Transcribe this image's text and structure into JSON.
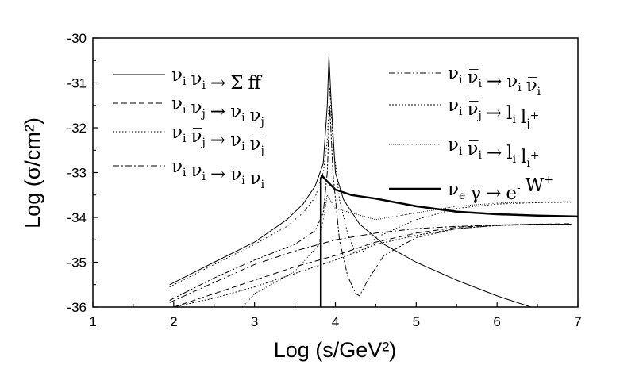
{
  "chart_data": {
    "type": "line",
    "title": "",
    "xlabel": "Log (s/GeV²)",
    "ylabel": "Log (σ/cm²)",
    "xlim": [
      1,
      7
    ],
    "ylim": [
      -36,
      -30
    ],
    "xticks": [
      "1",
      "2",
      "3",
      "4",
      "5",
      "6",
      "7"
    ],
    "yticks": [
      "-30",
      "-31",
      "-32",
      "-33",
      "-34",
      "-35",
      "-36"
    ],
    "grid": false,
    "legend": [
      {
        "id": "s1",
        "dash": "solid",
        "width": 1,
        "parts": [
          [
            "ν",
            "i"
          ],
          [
            "ν̅",
            "i"
          ],
          [
            "→",
            ""
          ],
          [
            "Σ",
            ""
          ],
          [
            "f",
            ""
          ],
          [
            "f̅",
            ""
          ]
        ]
      },
      {
        "id": "s2",
        "dash": "dash",
        "width": 1,
        "parts": [
          [
            "ν",
            "i"
          ],
          [
            "ν",
            "j"
          ],
          [
            "→",
            ""
          ],
          [
            "ν",
            "i"
          ],
          [
            "ν",
            "j"
          ]
        ]
      },
      {
        "id": "s3",
        "dash": "dot",
        "width": 1,
        "parts": [
          [
            "ν",
            "i"
          ],
          [
            "ν̅",
            "j"
          ],
          [
            "→",
            ""
          ],
          [
            "ν",
            "i"
          ],
          [
            "ν̅",
            "j"
          ]
        ]
      },
      {
        "id": "s4",
        "dash": "dashdot",
        "width": 1,
        "parts": [
          [
            "ν",
            "i"
          ],
          [
            "ν",
            "i"
          ],
          [
            "→",
            ""
          ],
          [
            "ν",
            "i"
          ],
          [
            "ν",
            "i"
          ]
        ]
      },
      {
        "id": "s5",
        "dash": "dashdotdot",
        "width": 1,
        "parts": [
          [
            "ν",
            "i"
          ],
          [
            "ν̅",
            "i"
          ],
          [
            "→",
            ""
          ],
          [
            "ν",
            "i"
          ],
          [
            "ν̅",
            "i"
          ]
        ]
      },
      {
        "id": "s6",
        "dash": "shortdot",
        "width": 1,
        "parts": [
          [
            "ν",
            "i"
          ],
          [
            "ν̅",
            "j"
          ],
          [
            "→",
            ""
          ],
          [
            "l",
            "i"
          ],
          [
            "l",
            "j+"
          ]
        ]
      },
      {
        "id": "s7",
        "dash": "finedot",
        "width": 1,
        "parts": [
          [
            "ν",
            "i"
          ],
          [
            "ν̅",
            "i"
          ],
          [
            "→",
            ""
          ],
          [
            "l",
            "i"
          ],
          [
            "l",
            "i+"
          ]
        ]
      },
      {
        "id": "s8",
        "dash": "solid",
        "width": 2.5,
        "parts": [
          [
            "ν",
            "e"
          ],
          [
            "γ",
            ""
          ],
          [
            "→",
            ""
          ],
          [
            "e",
            "-"
          ],
          [
            "W",
            "+"
          ]
        ]
      }
    ],
    "series": [
      {
        "id": "s1",
        "x": [
          1.95,
          2.5,
          3.0,
          3.4,
          3.6,
          3.75,
          3.85,
          3.9,
          3.92,
          3.95,
          4.0,
          4.1,
          4.3,
          4.6,
          5.0,
          5.5,
          6.0,
          6.42
        ],
        "y": [
          -35.5,
          -35.0,
          -34.55,
          -34.05,
          -33.7,
          -33.3,
          -32.8,
          -31.5,
          -30.4,
          -31.5,
          -33.0,
          -33.6,
          -34.15,
          -34.6,
          -35.0,
          -35.4,
          -35.75,
          -36.0
        ]
      },
      {
        "id": "s2",
        "x": [
          2.0,
          2.5,
          3.0,
          3.5,
          4.0,
          4.5,
          5.0,
          5.5,
          6.0,
          6.5,
          6.92
        ],
        "y": [
          -36.0,
          -35.7,
          -35.4,
          -35.1,
          -34.85,
          -34.55,
          -34.35,
          -34.22,
          -34.17,
          -34.15,
          -34.14
        ]
      },
      {
        "id": "s3",
        "x": [
          1.95,
          2.5,
          3.0,
          3.4,
          3.6,
          3.75,
          3.85,
          3.9,
          3.93,
          3.97,
          4.05,
          4.15,
          4.25,
          4.35,
          4.5,
          5.0,
          5.5,
          6.0,
          6.5,
          6.92
        ],
        "y": [
          -35.55,
          -35.05,
          -34.6,
          -34.2,
          -33.9,
          -33.55,
          -33.0,
          -32.3,
          -31.1,
          -32.3,
          -33.6,
          -34.35,
          -34.8,
          -34.75,
          -34.45,
          -34.05,
          -33.8,
          -33.7,
          -33.67,
          -33.66
        ]
      },
      {
        "id": "s4",
        "x": [
          1.95,
          2.5,
          3.0,
          3.5,
          4.0,
          4.5,
          5.0,
          5.5,
          6.0,
          6.5,
          6.92
        ],
        "y": [
          -35.9,
          -35.45,
          -35.05,
          -34.75,
          -34.5,
          -34.35,
          -34.25,
          -34.2,
          -34.17,
          -34.15,
          -34.15
        ]
      },
      {
        "id": "s5",
        "x": [
          1.95,
          2.5,
          3.0,
          3.5,
          3.75,
          3.85,
          3.9,
          3.93,
          3.97,
          4.05,
          4.15,
          4.25,
          4.3,
          4.4,
          4.6,
          5.0,
          5.5,
          6.0,
          6.5,
          6.92
        ],
        "y": [
          -35.85,
          -35.35,
          -34.95,
          -34.6,
          -34.3,
          -33.9,
          -33.0,
          -31.5,
          -33.0,
          -34.5,
          -35.3,
          -35.7,
          -35.75,
          -35.4,
          -34.85,
          -34.45,
          -34.25,
          -34.18,
          -34.15,
          -34.15
        ]
      },
      {
        "id": "s6",
        "x": [
          2.0,
          2.5,
          3.0,
          3.5,
          4.0,
          4.5,
          5.0,
          5.5,
          6.0,
          6.5,
          6.92
        ],
        "y": [
          -36.0,
          -35.8,
          -35.55,
          -35.25,
          -34.95,
          -34.6,
          -34.4,
          -34.25,
          -34.18,
          -34.16,
          -34.15
        ]
      },
      {
        "id": "s7",
        "x": [
          2.85,
          3.0,
          3.5,
          3.8,
          3.9,
          4.0,
          4.5,
          5.0,
          5.5,
          6.0,
          6.5,
          6.92
        ],
        "y": [
          -36.0,
          -35.7,
          -35.2,
          -34.6,
          -33.5,
          -33.8,
          -34.05,
          -33.9,
          -33.75,
          -33.68,
          -33.66,
          -33.65
        ]
      },
      {
        "id": "s8",
        "x": [
          3.82,
          3.82,
          3.84,
          3.9,
          4.0,
          4.2,
          4.5,
          5.0,
          5.5,
          6.0,
          6.5,
          7.0
        ],
        "y": [
          -36.0,
          -33.12,
          -33.08,
          -33.2,
          -33.38,
          -33.5,
          -33.58,
          -33.75,
          -33.87,
          -33.93,
          -33.96,
          -33.98
        ]
      }
    ]
  }
}
